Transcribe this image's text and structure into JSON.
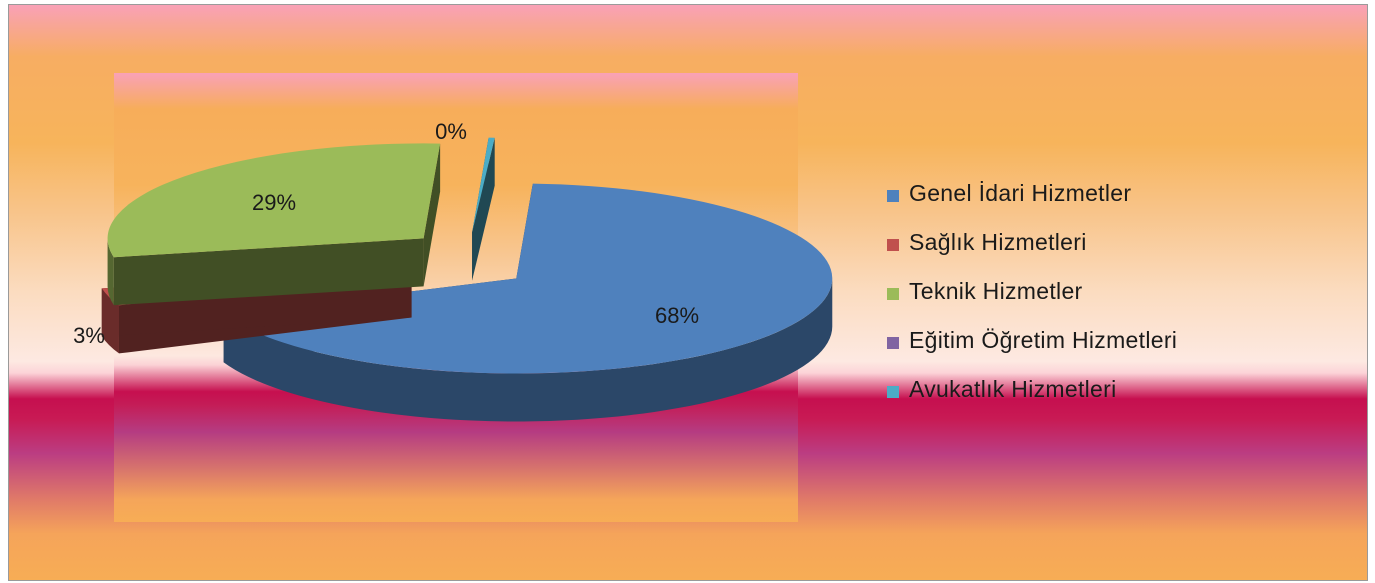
{
  "chart_data": {
    "type": "pie",
    "style": "3d-exploded",
    "categories": [
      "Genel İdari Hizmetler",
      "Sağlık Hizmetleri",
      "Teknik Hizmetler",
      "Eğitim Öğretim Hizmetleri",
      "Avukatlık Hizmetleri"
    ],
    "values": [
      68,
      3,
      29,
      0,
      0
    ],
    "data_labels": [
      "68%",
      "3%",
      "29%",
      "",
      "0%"
    ],
    "colors": [
      "#4f81bd",
      "#c0504d",
      "#9bbb59",
      "#8064a2",
      "#4bacc6"
    ],
    "legend_position": "right"
  }
}
